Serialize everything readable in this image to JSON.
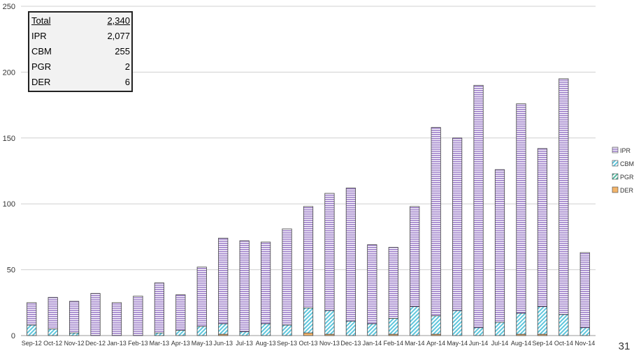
{
  "summary": {
    "rows": [
      {
        "label": "Total",
        "value": "2,340"
      },
      {
        "label": "IPR",
        "value": "2,077"
      },
      {
        "label": "CBM",
        "value": "255"
      },
      {
        "label": "PGR",
        "value": "2"
      },
      {
        "label": "DER",
        "value": "6"
      }
    ]
  },
  "page_number": "31",
  "colors": {
    "IPR": "#b79fd6",
    "CBM": "#9fe0ee",
    "PGR": "#8fd8c8",
    "DER": "#f3b56b",
    "grid": "#d0d0d0",
    "bar_outline": "#444444"
  },
  "chart_data": {
    "type": "bar",
    "stacked": true,
    "categories": [
      "Sep-12",
      "Oct-12",
      "Nov-12",
      "Dec-12",
      "Jan-13",
      "Feb-13",
      "Mar-13",
      "Apr-13",
      "May-13",
      "Jun-13",
      "Jul-13",
      "Aug-13",
      "Sep-13",
      "Oct-13",
      "Nov-13",
      "Dec-13",
      "Jan-14",
      "Feb-14",
      "Mar-14",
      "Apr-14",
      "May-14",
      "Jun-14",
      "Jul-14",
      "Aug-14",
      "Sep-14",
      "Oct-14",
      "Nov-14"
    ],
    "series": [
      {
        "name": "DER",
        "values": [
          0,
          0,
          0,
          0,
          0,
          0,
          0,
          0,
          0,
          1,
          0,
          0,
          0,
          2,
          1,
          0,
          0,
          1,
          0,
          1,
          0,
          0,
          0,
          1,
          1,
          0,
          0
        ]
      },
      {
        "name": "PGR",
        "values": [
          0,
          0,
          0,
          0,
          0,
          0,
          0,
          0,
          0,
          0,
          0,
          0,
          0,
          0,
          0,
          0,
          0,
          0,
          0,
          0,
          0,
          0,
          0,
          0,
          0,
          0,
          0
        ]
      },
      {
        "name": "CBM",
        "values": [
          8,
          5,
          2,
          0,
          0,
          0,
          2,
          4,
          7,
          8,
          3,
          9,
          8,
          19,
          18,
          11,
          9,
          12,
          22,
          14,
          19,
          6,
          10,
          16,
          21,
          16,
          6
        ]
      },
      {
        "name": "IPR",
        "values": [
          17,
          24,
          24,
          32,
          25,
          30,
          38,
          27,
          45,
          65,
          69,
          62,
          73,
          77,
          89,
          101,
          60,
          54,
          76,
          143,
          131,
          184,
          116,
          159,
          120,
          179,
          57
        ]
      }
    ],
    "legend": [
      "IPR",
      "CBM",
      "PGR",
      "DER"
    ],
    "legend_position": "right",
    "ylim": [
      0,
      250
    ],
    "yticks": [
      "0",
      "50",
      "100",
      "150",
      "200",
      "250"
    ],
    "grid": true,
    "title": "",
    "xlabel": "",
    "ylabel": ""
  }
}
